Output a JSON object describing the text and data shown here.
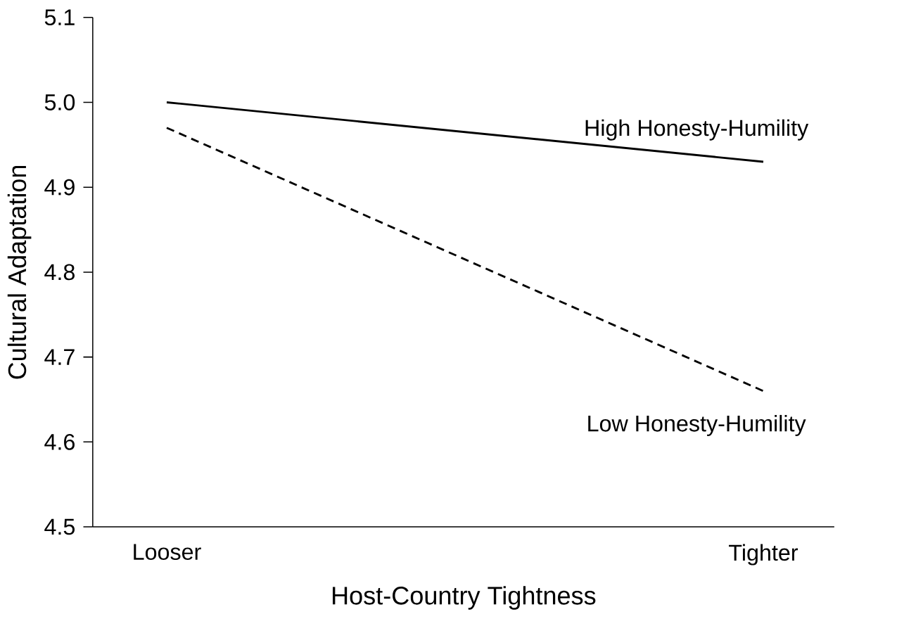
{
  "chart_data": {
    "type": "line",
    "xlabel": "Host-Country Tightness",
    "ylabel": "Cultural Adaptation",
    "categories": [
      "Looser",
      "Tighter"
    ],
    "series": [
      {
        "name": "High Honesty-Humility",
        "color": "#000000",
        "line_style": "solid",
        "values": [
          5.0,
          4.93
        ]
      },
      {
        "name": "Low Honesty-Humility",
        "color": "#000000",
        "line_style": "dashed",
        "values": [
          4.97,
          4.66
        ]
      }
    ],
    "ylim": [
      4.5,
      5.1
    ],
    "yticks": [
      4.5,
      4.6,
      4.7,
      4.8,
      4.9,
      {
        "value": 5,
        "label": "5.0"
      },
      5.1
    ],
    "grid": false,
    "legend": false,
    "marker": "none"
  }
}
